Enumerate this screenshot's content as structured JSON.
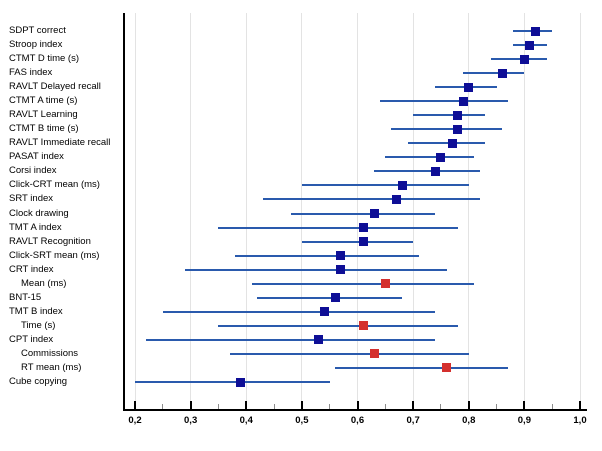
{
  "figure": {
    "background": "#ffffff"
  },
  "chart_data": {
    "type": "scatter",
    "variant": "forest-plot (point estimates with CI whiskers, horizontal)",
    "title": "",
    "xlabel": "",
    "ylabel": "",
    "xlim": [
      0.2,
      1.0
    ],
    "decimal_separator": ",",
    "grid": "vertical gridlines at major ticks only",
    "legend": null,
    "x_major_ticks": [
      0.2,
      0.3,
      0.4,
      0.5,
      0.6,
      0.7,
      0.8,
      0.9,
      1.0
    ],
    "x_tick_labels": [
      "0,2",
      "0,3",
      "0,4",
      "0,5",
      "0,6",
      "0,7",
      "0,8",
      "0,9",
      "1,0"
    ],
    "x_minor_ticks": [
      0.25,
      0.35,
      0.45,
      0.55,
      0.65,
      0.75,
      0.85,
      0.95
    ],
    "rows": [
      {
        "label": "SDPT correct",
        "indent": false,
        "mean": 0.92,
        "ci_low": 0.88,
        "ci_high": 0.95,
        "highlight": false
      },
      {
        "label": "Stroop index",
        "indent": false,
        "mean": 0.91,
        "ci_low": 0.88,
        "ci_high": 0.94,
        "highlight": false
      },
      {
        "label": "CTMT D time (s)",
        "indent": false,
        "mean": 0.9,
        "ci_low": 0.84,
        "ci_high": 0.94,
        "highlight": false
      },
      {
        "label": "FAS index",
        "indent": false,
        "mean": 0.86,
        "ci_low": 0.79,
        "ci_high": 0.9,
        "highlight": false
      },
      {
        "label": "RAVLT Delayed recall",
        "indent": false,
        "mean": 0.8,
        "ci_low": 0.74,
        "ci_high": 0.85,
        "highlight": false
      },
      {
        "label": "CTMT A time (s)",
        "indent": false,
        "mean": 0.79,
        "ci_low": 0.64,
        "ci_high": 0.87,
        "highlight": false
      },
      {
        "label": "RAVLT Learning",
        "indent": false,
        "mean": 0.78,
        "ci_low": 0.7,
        "ci_high": 0.83,
        "highlight": false
      },
      {
        "label": "CTMT B time (s)",
        "indent": false,
        "mean": 0.78,
        "ci_low": 0.66,
        "ci_high": 0.86,
        "highlight": false
      },
      {
        "label": "RAVLT Immediate recall",
        "indent": false,
        "mean": 0.77,
        "ci_low": 0.69,
        "ci_high": 0.83,
        "highlight": false
      },
      {
        "label": "PASAT index",
        "indent": false,
        "mean": 0.75,
        "ci_low": 0.65,
        "ci_high": 0.81,
        "highlight": false
      },
      {
        "label": "Corsi index",
        "indent": false,
        "mean": 0.74,
        "ci_low": 0.63,
        "ci_high": 0.82,
        "highlight": false
      },
      {
        "label": "Click-CRT mean (ms)",
        "indent": false,
        "mean": 0.68,
        "ci_low": 0.5,
        "ci_high": 0.8,
        "highlight": false
      },
      {
        "label": "SRT index",
        "indent": false,
        "mean": 0.67,
        "ci_low": 0.43,
        "ci_high": 0.82,
        "highlight": false
      },
      {
        "label": "Clock drawing",
        "indent": false,
        "mean": 0.63,
        "ci_low": 0.48,
        "ci_high": 0.74,
        "highlight": false
      },
      {
        "label": "TMT A index",
        "indent": false,
        "mean": 0.61,
        "ci_low": 0.35,
        "ci_high": 0.78,
        "highlight": false
      },
      {
        "label": "RAVLT Recognition",
        "indent": false,
        "mean": 0.61,
        "ci_low": 0.5,
        "ci_high": 0.7,
        "highlight": false
      },
      {
        "label": "Click-SRT mean (ms)",
        "indent": false,
        "mean": 0.57,
        "ci_low": 0.38,
        "ci_high": 0.71,
        "highlight": false
      },
      {
        "label": "CRT index",
        "indent": false,
        "mean": 0.57,
        "ci_low": 0.29,
        "ci_high": 0.76,
        "highlight": false
      },
      {
        "label": "Mean (ms)",
        "indent": true,
        "mean": 0.65,
        "ci_low": 0.41,
        "ci_high": 0.81,
        "highlight": true
      },
      {
        "label": "BNT-15",
        "indent": false,
        "mean": 0.56,
        "ci_low": 0.42,
        "ci_high": 0.68,
        "highlight": false
      },
      {
        "label": "TMT B index",
        "indent": false,
        "mean": 0.54,
        "ci_low": 0.25,
        "ci_high": 0.74,
        "highlight": false
      },
      {
        "label": "Time (s)",
        "indent": true,
        "mean": 0.61,
        "ci_low": 0.35,
        "ci_high": 0.78,
        "highlight": true
      },
      {
        "label": "CPT index",
        "indent": false,
        "mean": 0.53,
        "ci_low": 0.22,
        "ci_high": 0.74,
        "highlight": false
      },
      {
        "label": "Commissions",
        "indent": true,
        "mean": 0.63,
        "ci_low": 0.37,
        "ci_high": 0.8,
        "highlight": true
      },
      {
        "label": "RT mean (ms)",
        "indent": true,
        "mean": 0.76,
        "ci_low": 0.56,
        "ci_high": 0.87,
        "highlight": true
      },
      {
        "label": "Cube copying",
        "indent": false,
        "mean": 0.39,
        "ci_low": 0.2,
        "ci_high": 0.55,
        "highlight": false
      }
    ],
    "colors": {
      "marker": "#0e0e96",
      "marker_highlight": "#d4302e",
      "ci_line": "#2a5aad",
      "gridline": "#e3e3e3",
      "axis": "#000000",
      "minor_tick": "#8c8c8c",
      "text": "#000000"
    }
  }
}
